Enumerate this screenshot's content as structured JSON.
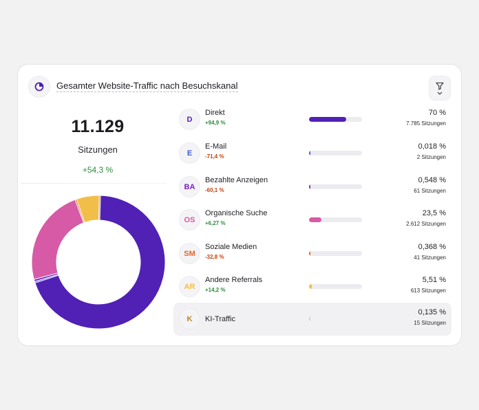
{
  "widget": {
    "title": "Gesamter Website-Traffic nach Besuchskanal",
    "header_icon": "pie-chart-icon",
    "filter_icon": "filter-icon"
  },
  "summary": {
    "total": "11.129",
    "label": "Sitzungen",
    "change": "+54,3 %"
  },
  "colors": {
    "direkt": "#5120b5",
    "organisch": "#d65aa6",
    "andere": "#f2be4a",
    "positive": "#2e8b3e",
    "negative": "#c2410c"
  },
  "channels": [
    {
      "initials": "D",
      "name": "Direkt",
      "change": "+94,9 %",
      "trend": "pos",
      "percent": "70 %",
      "sessions": "7.785 Sitzungen",
      "share": 0.7,
      "color": "#5120b5"
    },
    {
      "initials": "E",
      "name": "E-Mail",
      "change": "-71,4 %",
      "trend": "neg",
      "percent": "0,018 %",
      "sessions": "2 Sitzungen",
      "share": 0.00018,
      "color": "#3b5bdb"
    },
    {
      "initials": "BA",
      "name": "Bezahlte Anzeigen",
      "change": "-60,1 %",
      "trend": "neg",
      "percent": "0,548 %",
      "sessions": "61 Sitzungen",
      "share": 0.00548,
      "color": "#7a22c9"
    },
    {
      "initials": "OS",
      "name": "Organische Suche",
      "change": "+6,27 %",
      "trend": "pos",
      "percent": "23,5 %",
      "sessions": "2.612 Sitzungen",
      "share": 0.235,
      "color": "#d65aa6"
    },
    {
      "initials": "SM",
      "name": "Soziale Medien",
      "change": "-32,8 %",
      "trend": "neg",
      "percent": "0,368 %",
      "sessions": "41 Sitzungen",
      "share": 0.00368,
      "color": "#e0662a"
    },
    {
      "initials": "AR",
      "name": "Andere Referrals",
      "change": "+14,2 %",
      "trend": "pos",
      "percent": "5,51 %",
      "sessions": "613 Sitzungen",
      "share": 0.0551,
      "color": "#f2be4a"
    },
    {
      "initials": "K",
      "name": "KI-Traffic",
      "change": "",
      "trend": "",
      "percent": "0,135 %",
      "sessions": "15 Sitzungen",
      "share": 0.00135,
      "color": "#b8862a"
    }
  ]
}
